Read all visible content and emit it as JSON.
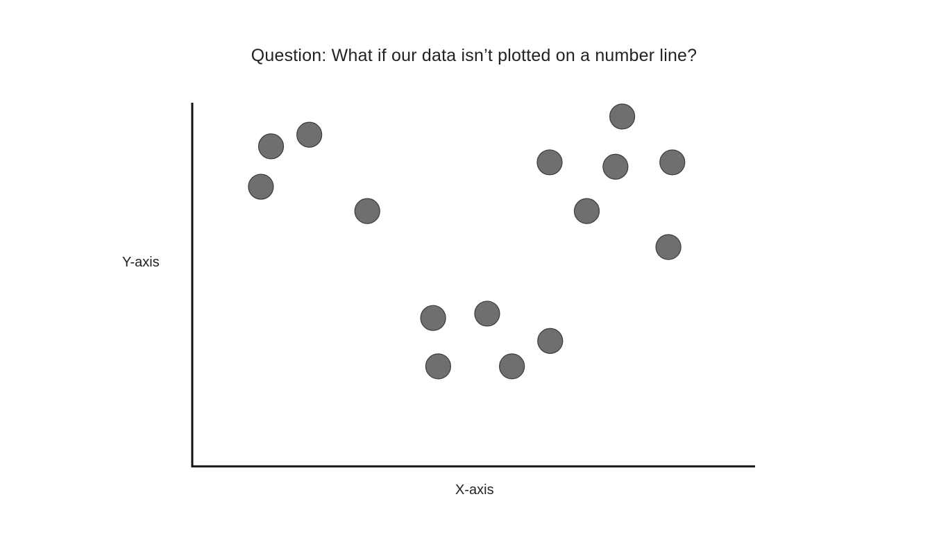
{
  "slide": {
    "title": "Question: What if our data isn’t plotted on a number line?"
  },
  "chart_data": {
    "type": "scatter",
    "title": "Question: What if our data isn’t plotted on a number line?",
    "xlabel": "X-axis",
    "ylabel": "Y-axis",
    "xlim": [
      0,
      100
    ],
    "ylim": [
      0,
      100
    ],
    "grid": false,
    "ticks": false,
    "series": [
      {
        "points": [
          {
            "x": 12.2,
            "y": 76.9
          },
          {
            "x": 14.0,
            "y": 88.0
          },
          {
            "x": 20.8,
            "y": 91.2
          },
          {
            "x": 31.1,
            "y": 70.2
          },
          {
            "x": 42.8,
            "y": 40.8
          },
          {
            "x": 43.7,
            "y": 27.5
          },
          {
            "x": 52.4,
            "y": 42.0
          },
          {
            "x": 56.8,
            "y": 27.5
          },
          {
            "x": 63.6,
            "y": 34.5
          },
          {
            "x": 63.5,
            "y": 83.6
          },
          {
            "x": 70.1,
            "y": 70.2
          },
          {
            "x": 75.2,
            "y": 82.4
          },
          {
            "x": 76.4,
            "y": 96.2
          },
          {
            "x": 84.6,
            "y": 60.3
          },
          {
            "x": 85.3,
            "y": 83.6
          }
        ]
      }
    ],
    "colors": {
      "marker_fill": "#6f6f6f",
      "marker_stroke": "#3a3a3a",
      "axis": "#111111",
      "text": "#222222"
    }
  }
}
